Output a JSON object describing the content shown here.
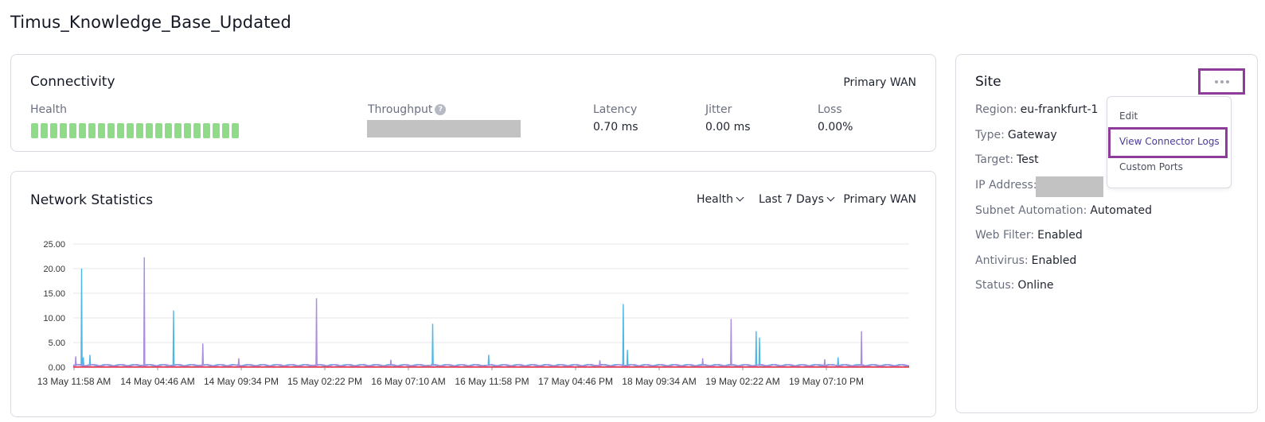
{
  "page": {
    "title": "Timus_Knowledge_Base_Updated"
  },
  "connectivity": {
    "title": "Connectivity",
    "wan": "Primary WAN",
    "health_label": "Health",
    "health_segments": 22,
    "throughput_label": "Throughput",
    "latency_label": "Latency",
    "latency_value": "0.70 ms",
    "jitter_label": "Jitter",
    "jitter_value": "0.00 ms",
    "loss_label": "Loss",
    "loss_value": "0.00%",
    "colors": {
      "health": "#8fdb8a"
    }
  },
  "network": {
    "title": "Network Statistics",
    "filter_metric": "Health",
    "filter_range": "Last 7 Days",
    "wan": "Primary WAN"
  },
  "chart_data": {
    "type": "line",
    "yticks": [
      "0.00",
      "5.00",
      "10.00",
      "15.00",
      "20.00",
      "25.00"
    ],
    "ylim": [
      0,
      25
    ],
    "xticks": [
      "13 May 11:58 AM",
      "14 May 04:46 AM",
      "14 May 09:34 PM",
      "15 May 02:22 PM",
      "16 May 07:10 AM",
      "16 May 11:58 PM",
      "17 May 04:46 PM",
      "18 May 09:34 AM",
      "19 May 02:22 AM",
      "19 May 07:10 PM"
    ],
    "grid": true,
    "baseline": 0.4,
    "series": [
      {
        "color": "#4db8e8",
        "values": [
          [
            0.1,
            20.0
          ],
          [
            0.12,
            2.0
          ],
          [
            0.2,
            2.5
          ],
          [
            1.2,
            11.5
          ],
          [
            4.3,
            8.8
          ],
          [
            4.97,
            2.5
          ],
          [
            6.58,
            12.8
          ],
          [
            6.63,
            3.5
          ],
          [
            8.17,
            7.3
          ],
          [
            8.21,
            6.0
          ],
          [
            9.15,
            2.0
          ]
        ]
      },
      {
        "color": "#a98de0",
        "values": [
          [
            0.03,
            2.2
          ],
          [
            0.85,
            22.3
          ],
          [
            1.55,
            4.8
          ],
          [
            1.98,
            1.8
          ],
          [
            2.91,
            14.0
          ],
          [
            3.8,
            1.5
          ],
          [
            6.3,
            1.4
          ],
          [
            7.53,
            1.8
          ],
          [
            7.87,
            9.8
          ],
          [
            8.99,
            1.6
          ],
          [
            9.43,
            7.3
          ]
        ]
      },
      {
        "color": "#e0405a",
        "values": [
          [
            0,
            0.05
          ],
          [
            10,
            0.05
          ]
        ]
      }
    ]
  },
  "site": {
    "title": "Site",
    "rows": [
      {
        "k": "Region:",
        "v": "eu-frankfurt-1"
      },
      {
        "k": "Type:",
        "v": "Gateway"
      },
      {
        "k": "Target:",
        "v": "Test"
      },
      {
        "k": "IP Address:",
        "v": ""
      },
      {
        "k": "Subnet Automation:",
        "v": "Automated"
      },
      {
        "k": "Web Filter:",
        "v": "Enabled"
      },
      {
        "k": "Antivirus:",
        "v": "Enabled"
      },
      {
        "k": "Status:",
        "v": "Online"
      }
    ],
    "menu": {
      "edit": "Edit",
      "logs": "View Connector Logs",
      "ports": "Custom Ports"
    }
  }
}
